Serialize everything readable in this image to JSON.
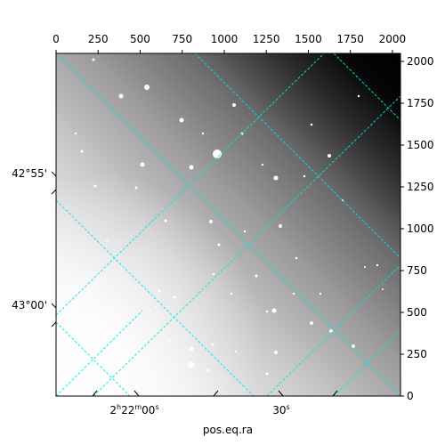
{
  "chart_data": {
    "type": "image",
    "xlabel": "pos.eq.ra",
    "pixel_axis_top": {
      "range": [
        0,
        2048
      ],
      "ticks": [
        0,
        250,
        500,
        750,
        1000,
        1250,
        1500,
        1750,
        2000
      ],
      "tick_labels": [
        "0",
        "250",
        "500",
        "750",
        "1000",
        "1250",
        "1500",
        "1750",
        "2000"
      ]
    },
    "pixel_axis_right": {
      "range": [
        0,
        2048
      ],
      "ticks": [
        0,
        250,
        500,
        750,
        1000,
        1250,
        1500,
        1750,
        2000
      ],
      "tick_labels": [
        "0",
        "250",
        "500",
        "750",
        "1000",
        "1250",
        "1500",
        "1750",
        "2000"
      ]
    },
    "world_axis_bottom": {
      "tick_labels": [
        {
          "h": "2",
          "m": "22",
          "s": "00"
        },
        {
          "h": "",
          "m": "",
          "s": "30"
        }
      ]
    },
    "world_axis_left": {
      "tick_labels": [
        "42°55'",
        "43°00'"
      ]
    },
    "grid": true,
    "grid_color": "#00e5e5",
    "colormap": "gray"
  }
}
